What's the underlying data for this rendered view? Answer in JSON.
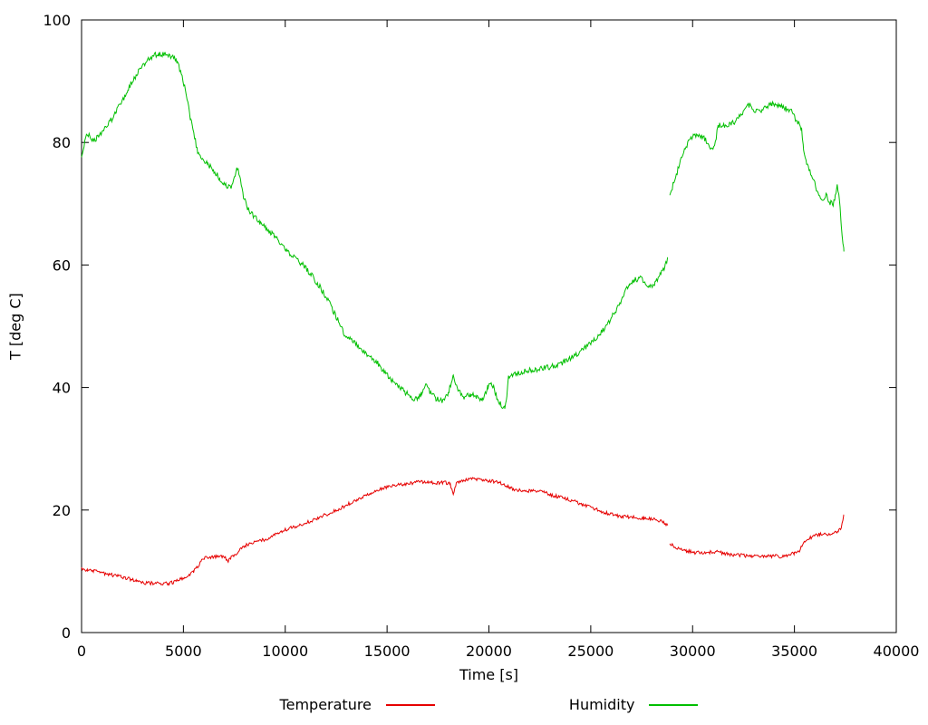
{
  "page": {
    "background": "#ffffff",
    "axis_color": "#000000"
  },
  "chart_data": {
    "type": "line",
    "title": "",
    "xlabel": "Time [s]",
    "ylabel": "T [deg C]",
    "xlim": [
      0,
      40000
    ],
    "ylim": [
      0,
      100
    ],
    "x_ticks": [
      0,
      5000,
      10000,
      15000,
      20000,
      25000,
      30000,
      35000,
      40000
    ],
    "y_ticks": [
      0,
      20,
      40,
      60,
      80,
      100
    ],
    "grid": false,
    "legend_position": "bottom-center",
    "series": [
      {
        "name": "Temperature",
        "color": "#e60000",
        "noise": 0.28,
        "segments": [
          [
            [
              0,
              10.4
            ],
            [
              300,
              10.2
            ],
            [
              600,
              10.1
            ],
            [
              900,
              9.8
            ],
            [
              1200,
              9.6
            ],
            [
              1500,
              9.4
            ],
            [
              1800,
              9.2
            ],
            [
              2100,
              9.0
            ],
            [
              2400,
              8.7
            ],
            [
              2700,
              8.5
            ],
            [
              3000,
              8.2
            ],
            [
              3150,
              8.05
            ],
            [
              4300,
              8.05
            ],
            [
              4600,
              8.3
            ],
            [
              4900,
              8.7
            ],
            [
              5200,
              9.1
            ],
            [
              5500,
              9.9
            ],
            [
              5700,
              10.8
            ],
            [
              5900,
              11.7
            ],
            [
              6100,
              12.2
            ],
            [
              6500,
              12.35
            ],
            [
              6900,
              12.45
            ],
            [
              7100,
              12.1
            ],
            [
              7200,
              11.7
            ],
            [
              7350,
              12.3
            ],
            [
              7500,
              12.6
            ],
            [
              7700,
              13.2
            ],
            [
              7900,
              14.0
            ],
            [
              8200,
              14.4
            ],
            [
              8600,
              14.8
            ],
            [
              9000,
              15.2
            ],
            [
              9400,
              15.8
            ],
            [
              9800,
              16.5
            ],
            [
              10200,
              17.0
            ],
            [
              10600,
              17.4
            ],
            [
              11000,
              17.9
            ],
            [
              11400,
              18.4
            ],
            [
              11800,
              19.0
            ],
            [
              12200,
              19.5
            ],
            [
              12600,
              20.1
            ],
            [
              13000,
              20.8
            ],
            [
              13400,
              21.5
            ],
            [
              13800,
              22.2
            ],
            [
              14200,
              22.8
            ],
            [
              14600,
              23.3
            ],
            [
              15000,
              23.7
            ],
            [
              15400,
              24.0
            ],
            [
              15800,
              24.2
            ],
            [
              16200,
              24.4
            ],
            [
              16600,
              24.6
            ],
            [
              17000,
              24.6
            ],
            [
              17400,
              24.4
            ],
            [
              17800,
              24.5
            ],
            [
              18100,
              24.3
            ],
            [
              18250,
              22.5
            ],
            [
              18400,
              24.4
            ],
            [
              18800,
              24.9
            ],
            [
              19200,
              25.1
            ],
            [
              19600,
              25.0
            ],
            [
              20000,
              24.8
            ],
            [
              20400,
              24.6
            ],
            [
              20700,
              24.2
            ],
            [
              21000,
              23.7
            ],
            [
              21300,
              23.3
            ],
            [
              21700,
              23.1
            ],
            [
              22200,
              23.1
            ],
            [
              22700,
              22.9
            ],
            [
              23100,
              22.4
            ],
            [
              23500,
              22.1
            ],
            [
              23900,
              21.7
            ],
            [
              24300,
              21.3
            ],
            [
              24700,
              20.8
            ],
            [
              25100,
              20.3
            ],
            [
              25500,
              19.8
            ],
            [
              25900,
              19.4
            ],
            [
              26300,
              19.1
            ],
            [
              26700,
              18.9
            ],
            [
              27100,
              18.8
            ],
            [
              27600,
              18.6
            ],
            [
              28100,
              18.5
            ],
            [
              28500,
              18.1
            ],
            [
              28780,
              17.5
            ]
          ],
          [
            [
              28880,
              14.5
            ],
            [
              29100,
              14.1
            ],
            [
              29400,
              13.6
            ],
            [
              29700,
              13.3
            ],
            [
              30000,
              13.1
            ],
            [
              30400,
              13.0
            ],
            [
              30800,
              13.1
            ],
            [
              31200,
              13.2
            ],
            [
              31600,
              12.9
            ],
            [
              32000,
              12.7
            ],
            [
              32400,
              12.6
            ],
            [
              32800,
              12.5
            ],
            [
              33200,
              12.6
            ],
            [
              33600,
              12.4
            ],
            [
              34000,
              12.5
            ],
            [
              34400,
              12.4
            ],
            [
              34700,
              12.6
            ],
            [
              35000,
              13.0
            ],
            [
              35250,
              13.4
            ],
            [
              35450,
              14.5
            ],
            [
              35700,
              15.3
            ],
            [
              35950,
              15.8
            ],
            [
              36200,
              16.0
            ],
            [
              36500,
              16.0
            ],
            [
              36800,
              16.1
            ],
            [
              37000,
              16.3
            ],
            [
              37150,
              16.5
            ],
            [
              37300,
              17.0
            ],
            [
              37380,
              18.2
            ],
            [
              37430,
              19.2
            ]
          ]
        ]
      },
      {
        "name": "Humidity",
        "color": "#00bf00",
        "noise": 0.45,
        "segments": [
          [
            [
              0,
              77.8
            ],
            [
              120,
              79.6
            ],
            [
              250,
              81.6
            ],
            [
              400,
              81.0
            ],
            [
              550,
              80.3
            ],
            [
              800,
              80.8
            ],
            [
              1100,
              82.0
            ],
            [
              1400,
              83.4
            ],
            [
              1700,
              85.0
            ],
            [
              2000,
              86.8
            ],
            [
              2300,
              88.8
            ],
            [
              2600,
              90.6
            ],
            [
              2900,
              92.0
            ],
            [
              3200,
              93.2
            ],
            [
              3500,
              94.1
            ],
            [
              3800,
              94.5
            ],
            [
              4100,
              94.4
            ],
            [
              4400,
              94.1
            ],
            [
              4700,
              93.2
            ],
            [
              4900,
              91.2
            ],
            [
              5100,
              88.6
            ],
            [
              5350,
              83.8
            ],
            [
              5550,
              81.0
            ],
            [
              5700,
              78.2
            ],
            [
              5900,
              77.3
            ],
            [
              6200,
              76.5
            ],
            [
              6500,
              75.4
            ],
            [
              6800,
              74.0
            ],
            [
              7100,
              72.9
            ],
            [
              7300,
              72.6
            ],
            [
              7500,
              74.0
            ],
            [
              7650,
              75.8
            ],
            [
              7800,
              73.8
            ],
            [
              7950,
              71.2
            ],
            [
              8150,
              69.2
            ],
            [
              8450,
              68.0
            ],
            [
              8750,
              67.0
            ],
            [
              9050,
              66.0
            ],
            [
              9350,
              65.1
            ],
            [
              9700,
              63.8
            ],
            [
              10100,
              62.3
            ],
            [
              10500,
              61.0
            ],
            [
              10900,
              60.0
            ],
            [
              11300,
              58.3
            ],
            [
              11700,
              56.4
            ],
            [
              12100,
              54.2
            ],
            [
              12500,
              51.6
            ],
            [
              12900,
              48.8
            ],
            [
              13300,
              47.6
            ],
            [
              13700,
              46.3
            ],
            [
              14100,
              45.2
            ],
            [
              14500,
              44.1
            ],
            [
              14900,
              42.4
            ],
            [
              15300,
              41.0
            ],
            [
              15700,
              39.8
            ],
            [
              16100,
              38.6
            ],
            [
              16400,
              38.1
            ],
            [
              16700,
              38.9
            ],
            [
              16900,
              40.9
            ],
            [
              17100,
              39.3
            ],
            [
              17400,
              38.2
            ],
            [
              17700,
              37.9
            ],
            [
              18000,
              39.1
            ],
            [
              18250,
              41.9
            ],
            [
              18500,
              39.5
            ],
            [
              18800,
              38.3
            ],
            [
              19100,
              38.9
            ],
            [
              19400,
              38.4
            ],
            [
              19700,
              37.9
            ],
            [
              19950,
              40.1
            ],
            [
              20150,
              40.7
            ],
            [
              20400,
              38.2
            ],
            [
              20600,
              37.1
            ],
            [
              20780,
              36.6
            ],
            [
              20880,
              38.5
            ],
            [
              20960,
              41.7
            ],
            [
              21200,
              42.2
            ],
            [
              21600,
              42.5
            ],
            [
              22000,
              42.8
            ],
            [
              22400,
              43.0
            ],
            [
              22800,
              43.2
            ],
            [
              23200,
              43.5
            ],
            [
              23600,
              44.0
            ],
            [
              24000,
              44.8
            ],
            [
              24400,
              45.6
            ],
            [
              24800,
              46.7
            ],
            [
              25200,
              47.9
            ],
            [
              25600,
              49.4
            ],
            [
              26000,
              51.3
            ],
            [
              26350,
              53.2
            ],
            [
              26650,
              55.4
            ],
            [
              26900,
              56.9
            ],
            [
              27150,
              57.6
            ],
            [
              27450,
              57.8
            ],
            [
              27700,
              56.9
            ],
            [
              27900,
              56.4
            ],
            [
              28150,
              57.1
            ],
            [
              28400,
              58.3
            ],
            [
              28650,
              59.8
            ],
            [
              28780,
              61.2
            ]
          ],
          [
            [
              28880,
              71.2
            ],
            [
              29000,
              72.6
            ],
            [
              29200,
              74.8
            ],
            [
              29400,
              76.8
            ],
            [
              29600,
              78.6
            ],
            [
              29800,
              80.2
            ],
            [
              30000,
              81.0
            ],
            [
              30200,
              81.3
            ],
            [
              30400,
              81.0
            ],
            [
              30600,
              80.6
            ],
            [
              30800,
              79.4
            ],
            [
              31000,
              79.2
            ],
            [
              31120,
              80.2
            ],
            [
              31250,
              82.6
            ],
            [
              31450,
              83.0
            ],
            [
              31650,
              82.6
            ],
            [
              31850,
              83.0
            ],
            [
              32050,
              83.4
            ],
            [
              32250,
              84.0
            ],
            [
              32450,
              84.7
            ],
            [
              32650,
              85.9
            ],
            [
              32850,
              86.1
            ],
            [
              33050,
              85.3
            ],
            [
              33250,
              84.9
            ],
            [
              33450,
              85.4
            ],
            [
              33650,
              85.9
            ],
            [
              33850,
              86.2
            ],
            [
              34050,
              86.3
            ],
            [
              34250,
              85.9
            ],
            [
              34450,
              85.7
            ],
            [
              34650,
              85.5
            ],
            [
              34850,
              85.0
            ],
            [
              35050,
              83.9
            ],
            [
              35250,
              82.9
            ],
            [
              35350,
              82.2
            ],
            [
              35450,
              78.9
            ],
            [
              35600,
              76.6
            ],
            [
              35800,
              74.8
            ],
            [
              36000,
              73.2
            ],
            [
              36200,
              71.3
            ],
            [
              36400,
              70.6
            ],
            [
              36550,
              71.4
            ],
            [
              36750,
              70.2
            ],
            [
              36900,
              69.8
            ],
            [
              37000,
              71.0
            ],
            [
              37100,
              73.4
            ],
            [
              37200,
              70.8
            ],
            [
              37300,
              66.8
            ],
            [
              37380,
              63.2
            ],
            [
              37430,
              62.2
            ]
          ]
        ]
      }
    ]
  }
}
